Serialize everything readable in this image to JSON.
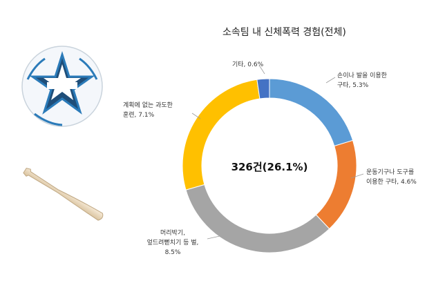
{
  "chart_data": {
    "type": "pie",
    "title": "소속팀 내 신체폭력 경험(전체)",
    "center_label": "326건(26.1%)",
    "slices": [
      {
        "label_lines": [
          "손이나 발을 이용한",
          "구타, 5.3%"
        ],
        "value": 5.3,
        "color": "#5b9bd5"
      },
      {
        "label_lines": [
          "운동기구나 도구를",
          "이용한 구타, 4.6%"
        ],
        "value": 4.6,
        "color": "#ed7d31"
      },
      {
        "label_lines": [
          "머리박기,",
          "엎드려뻗치기 등 벌,",
          "8.5%"
        ],
        "value": 8.5,
        "color": "#a5a5a5"
      },
      {
        "label_lines": [
          "계획에 없는 과도한",
          "훈련, 7.1%"
        ],
        "value": 7.1,
        "color": "#ffc000"
      },
      {
        "label_lines": [
          "기타, 0.6%"
        ],
        "value": 0.6,
        "color": "#4472c4"
      }
    ]
  }
}
